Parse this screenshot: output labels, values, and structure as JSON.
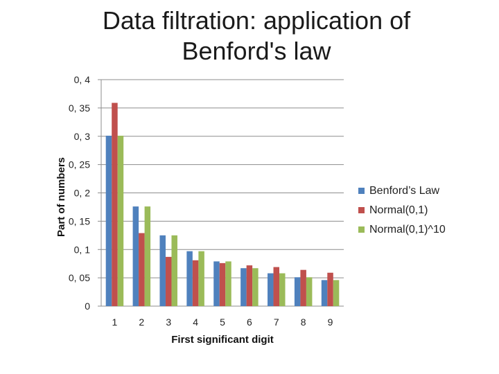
{
  "title": "Data filtration: application of Benford's law",
  "chart_data": {
    "type": "bar",
    "title": "Data filtration: application of Benford's law",
    "xlabel": "First significant digit",
    "ylabel": "Part of numbers",
    "categories": [
      "1",
      "2",
      "3",
      "4",
      "5",
      "6",
      "7",
      "8",
      "9"
    ],
    "yticks": [
      "0",
      "0, 05",
      "0, 1",
      "0, 15",
      "0, 2",
      "0, 25",
      "0, 3",
      "0, 35",
      "0, 4"
    ],
    "ylim": [
      0,
      0.4
    ],
    "grid": true,
    "legend_position": "right",
    "series": [
      {
        "name": "Benford’s Law",
        "color": "#4F81BD",
        "values": [
          0.301,
          0.176,
          0.125,
          0.097,
          0.079,
          0.067,
          0.058,
          0.051,
          0.046
        ]
      },
      {
        "name": "Normal(0,1)",
        "color": "#C0504D",
        "values": [
          0.359,
          0.129,
          0.087,
          0.081,
          0.076,
          0.072,
          0.069,
          0.064,
          0.059
        ]
      },
      {
        "name": "Normal(0,1)^10",
        "color": "#9BBB59",
        "values": [
          0.301,
          0.176,
          0.125,
          0.097,
          0.079,
          0.067,
          0.058,
          0.051,
          0.046
        ]
      }
    ]
  }
}
